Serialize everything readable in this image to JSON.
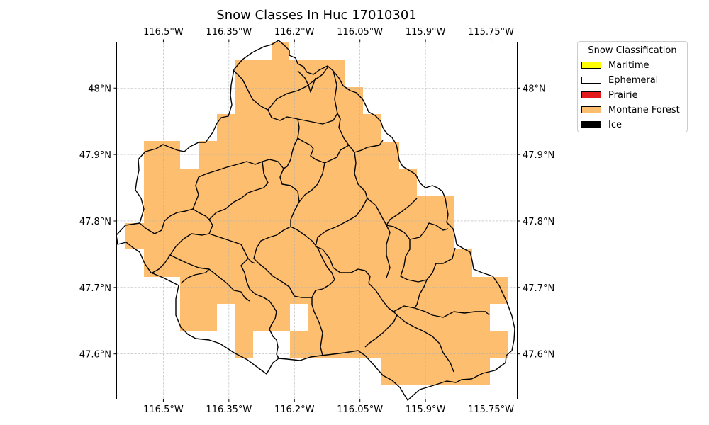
{
  "title": "Snow Classes In Huc 17010301",
  "axes": {
    "lon_ticks": [
      "116.5°W",
      "116.35°W",
      "116.2°W",
      "116.05°W",
      "115.9°W",
      "115.75°W"
    ],
    "lat_ticks": [
      "48°N",
      "47.9°N",
      "47.8°N",
      "47.7°N",
      "47.6°N"
    ],
    "lon_range": [
      -116.607,
      -115.69
    ],
    "lat_range": [
      47.532,
      48.069
    ],
    "gridlines": true
  },
  "legend": {
    "title": "Snow Classification",
    "placement": "right-outside-top",
    "items": [
      {
        "label": "Maritime",
        "color": "#ffff00"
      },
      {
        "label": "Ephemeral",
        "color": "#ffffff"
      },
      {
        "label": "Prairie",
        "color": "#e31a1c"
      },
      {
        "label": "Montane Forest",
        "color": "#fdbf6f"
      },
      {
        "label": "Ice",
        "color": "#000000"
      }
    ]
  },
  "map": {
    "region": "HUC 17010301",
    "dominant_class": "Montane Forest",
    "fill_color": "#fdbf6f",
    "boundary_color": "#000000"
  }
}
